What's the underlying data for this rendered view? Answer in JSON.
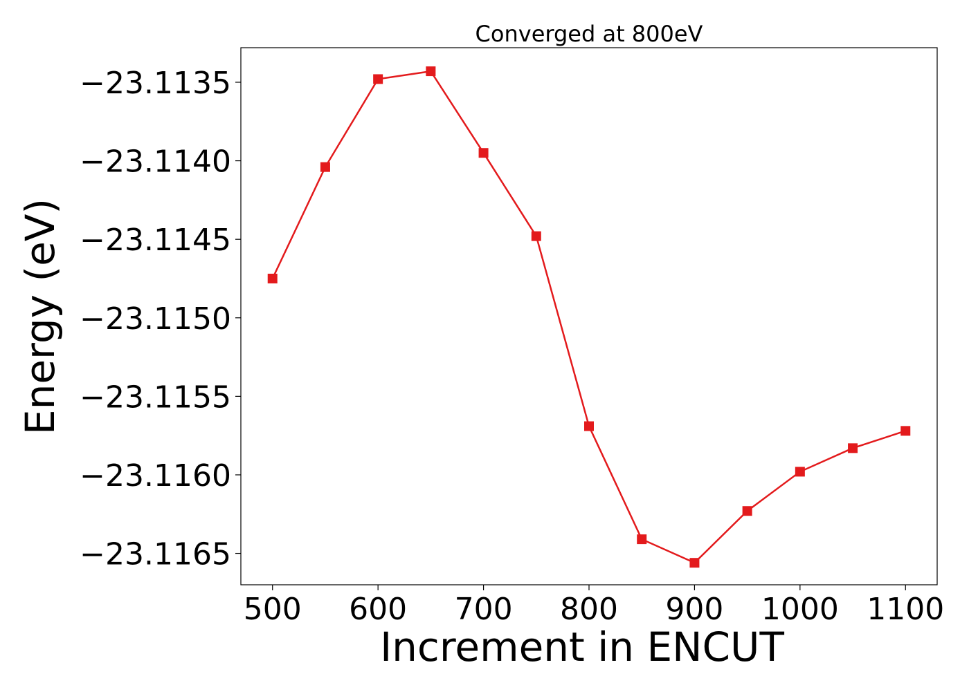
{
  "chart_data": {
    "type": "line",
    "title": "Converged at 800eV",
    "xlabel": "Increment in ENCUT",
    "ylabel": "Energy (eV)",
    "x": [
      500,
      550,
      600,
      650,
      700,
      750,
      800,
      850,
      900,
      950,
      1000,
      1050,
      1100
    ],
    "series": [
      {
        "values": [
          -23.11475,
          -23.11404,
          -23.11348,
          -23.11343,
          -23.11395,
          -23.11448,
          -23.11569,
          -23.11641,
          -23.11656,
          -23.11623,
          -23.11598,
          -23.11583,
          -23.11572
        ],
        "color": "#e31a1c",
        "marker": "square"
      }
    ],
    "xlim": [
      470,
      1130
    ],
    "ylim": [
      -23.1167,
      -23.11328
    ],
    "xticks": [
      500,
      600,
      700,
      800,
      900,
      1000,
      1100
    ],
    "xtick_labels": [
      "500",
      "600",
      "700",
      "800",
      "900",
      "1000",
      "1100"
    ],
    "yticks": [
      -23.1135,
      -23.114,
      -23.1145,
      -23.115,
      -23.1155,
      -23.116,
      -23.1165
    ],
    "ytick_labels": [
      "−23.1135",
      "−23.1140",
      "−23.1145",
      "−23.1150",
      "−23.1155",
      "−23.1160",
      "−23.1165"
    ],
    "grid": false,
    "legend": "none"
  }
}
